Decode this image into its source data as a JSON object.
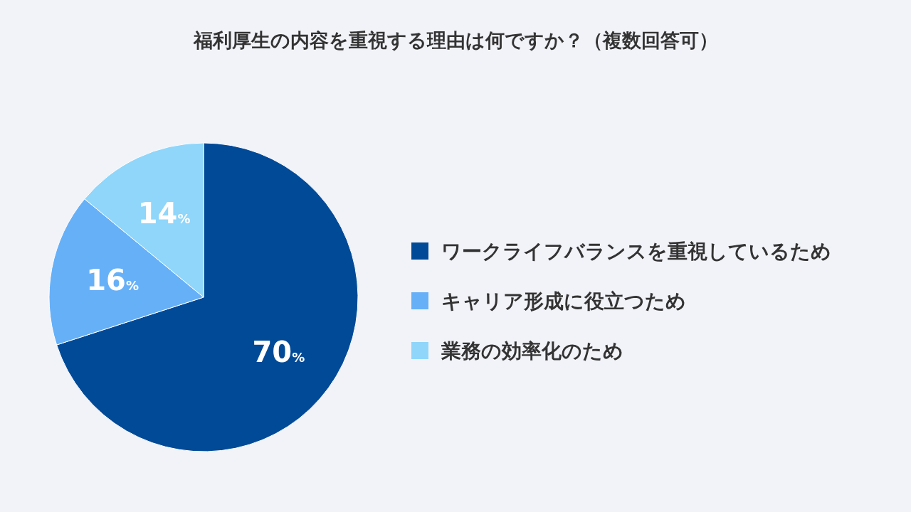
{
  "chart_data": {
    "type": "pie",
    "title": "福利厚生の内容を重視する理由は何ですか？（複数回答可）",
    "categories": [
      "ワークライフバランスを重視しているため",
      "キャリア形成に役立つため",
      "業務の効率化のため"
    ],
    "values": [
      70,
      16,
      14
    ],
    "colors": [
      "#004a97",
      "#66b0f8",
      "#8fd6fa"
    ],
    "value_labels": [
      "70%",
      "16%",
      "14%"
    ],
    "legend": "right"
  }
}
